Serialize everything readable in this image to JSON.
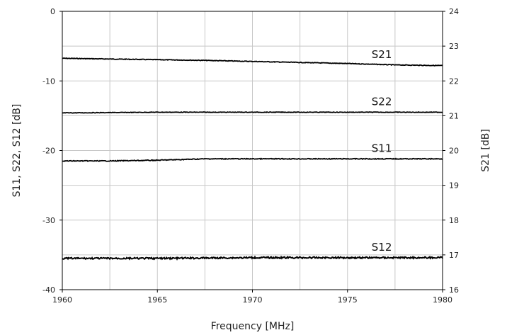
{
  "chart_data": {
    "type": "line",
    "title": "",
    "xlabel": "Frequency [MHz]",
    "ylabel": "S11, S22, S12 [dB]",
    "y2label": "S21 [dB]",
    "xlim": [
      1960,
      1980
    ],
    "ylim": [
      -40,
      0
    ],
    "y2lim": [
      16,
      24
    ],
    "x_ticks": [
      1960,
      1965,
      1970,
      1975,
      1980
    ],
    "x_tick_labels": [
      "1960",
      "1965",
      "1970",
      "1975",
      "1980"
    ],
    "y_ticks": [
      -40,
      -30,
      -20,
      -10,
      0
    ],
    "y_tick_labels": [
      "-40",
      "-30",
      "-20",
      "-10",
      "0"
    ],
    "y2_ticks": [
      16,
      17,
      18,
      19,
      20,
      21,
      22,
      23,
      24
    ],
    "y2_tick_labels": [
      "16",
      "17",
      "18",
      "19",
      "20",
      "21",
      "22",
      "23",
      "24"
    ],
    "grid": true,
    "legend": "none (series labeled inline)",
    "line_color": "#000000",
    "grid_color": "#c8c8c8",
    "series": [
      {
        "name": "S21",
        "axis": "right",
        "x": [
          1960,
          1962.5,
          1965,
          1967.5,
          1970,
          1972.5,
          1975,
          1977.5,
          1980
        ],
        "y": [
          22.65,
          22.63,
          22.61,
          22.59,
          22.56,
          22.53,
          22.5,
          22.46,
          22.44
        ]
      },
      {
        "name": "S22",
        "axis": "left",
        "x": [
          1960,
          1965,
          1970,
          1975,
          1980
        ],
        "y": [
          -14.6,
          -14.5,
          -14.5,
          -14.5,
          -14.5
        ]
      },
      {
        "name": "S11",
        "axis": "left",
        "x": [
          1960,
          1962.5,
          1965,
          1967.5,
          1970,
          1975,
          1980
        ],
        "y": [
          -21.5,
          -21.5,
          -21.4,
          -21.2,
          -21.2,
          -21.2,
          -21.2
        ]
      },
      {
        "name": "S12",
        "axis": "left",
        "x": [
          1960,
          1965,
          1970,
          1975,
          1980
        ],
        "y": [
          -35.5,
          -35.5,
          -35.4,
          -35.4,
          -35.4
        ]
      }
    ]
  }
}
